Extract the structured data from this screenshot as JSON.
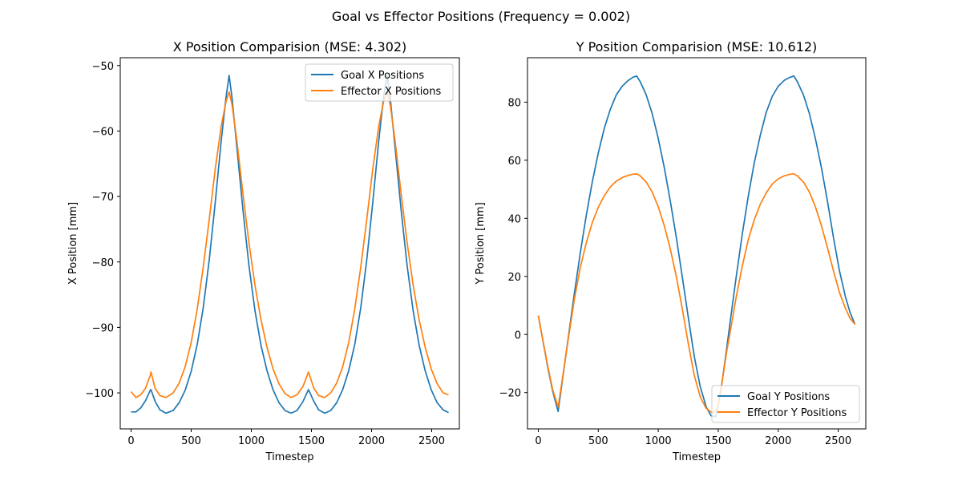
{
  "figure": {
    "suptitle": "Goal vs Effector Positions (Frequency = 0.002)"
  },
  "colors": {
    "goal": "#1f77b4",
    "effector": "#ff7f0e"
  },
  "chart_data": [
    {
      "type": "line",
      "title": "X Position Comparision (MSE: 4.302)",
      "xlabel": "Timestep",
      "ylabel": "X Position [mm]",
      "xlim": [
        -90,
        2730
      ],
      "ylim": [
        -105.5,
        -48.8
      ],
      "xticks": [
        0,
        500,
        1000,
        1500,
        2000,
        2500
      ],
      "yticks": [
        -100,
        -90,
        -80,
        -70,
        -60,
        -50
      ],
      "legend_position": "top-right",
      "series": [
        {
          "name": "Goal X Positions",
          "color": "#1f77b4",
          "points": [
            [
              0,
              -102.9
            ],
            [
              40,
              -102.9
            ],
            [
              80,
              -102.3
            ],
            [
              120,
              -101.2
            ],
            [
              160,
              -99.6
            ],
            [
              165,
              -99.5
            ],
            [
              200,
              -101.3
            ],
            [
              240,
              -102.6
            ],
            [
              290,
              -103.1
            ],
            [
              350,
              -102.7
            ],
            [
              400,
              -101.5
            ],
            [
              450,
              -99.6
            ],
            [
              500,
              -96.7
            ],
            [
              550,
              -92.6
            ],
            [
              600,
              -87.0
            ],
            [
              650,
              -79.7
            ],
            [
              700,
              -70.9
            ],
            [
              750,
              -61.4
            ],
            [
              790,
              -54.8
            ],
            [
              815,
              -51.5
            ],
            [
              840,
              -55.0
            ],
            [
              880,
              -62.5
            ],
            [
              930,
              -72.0
            ],
            [
              980,
              -80.5
            ],
            [
              1030,
              -87.4
            ],
            [
              1080,
              -92.7
            ],
            [
              1130,
              -96.6
            ],
            [
              1180,
              -99.5
            ],
            [
              1230,
              -101.5
            ],
            [
              1280,
              -102.7
            ],
            [
              1330,
              -103.1
            ],
            [
              1380,
              -102.7
            ],
            [
              1430,
              -101.3
            ],
            [
              1475,
              -99.5
            ],
            [
              1520,
              -101.3
            ],
            [
              1560,
              -102.6
            ],
            [
              1610,
              -103.1
            ],
            [
              1660,
              -102.7
            ],
            [
              1710,
              -101.5
            ],
            [
              1760,
              -99.5
            ],
            [
              1810,
              -96.6
            ],
            [
              1860,
              -92.6
            ],
            [
              1910,
              -87.0
            ],
            [
              1960,
              -79.7
            ],
            [
              2010,
              -70.9
            ],
            [
              2060,
              -61.4
            ],
            [
              2100,
              -54.8
            ],
            [
              2130,
              -51.5
            ],
            [
              2155,
              -55.0
            ],
            [
              2195,
              -62.5
            ],
            [
              2245,
              -72.0
            ],
            [
              2295,
              -80.5
            ],
            [
              2345,
              -87.4
            ],
            [
              2395,
              -92.7
            ],
            [
              2445,
              -96.6
            ],
            [
              2495,
              -99.5
            ],
            [
              2545,
              -101.5
            ],
            [
              2595,
              -102.6
            ],
            [
              2640,
              -103.0
            ]
          ]
        },
        {
          "name": "Effector X Positions",
          "color": "#ff7f0e",
          "points": [
            [
              0,
              -99.8
            ],
            [
              40,
              -100.7
            ],
            [
              80,
              -100.3
            ],
            [
              120,
              -99.3
            ],
            [
              160,
              -97.3
            ],
            [
              165,
              -96.8
            ],
            [
              200,
              -99.3
            ],
            [
              240,
              -100.4
            ],
            [
              290,
              -100.7
            ],
            [
              350,
              -100.0
            ],
            [
              400,
              -98.5
            ],
            [
              450,
              -96.0
            ],
            [
              500,
              -92.3
            ],
            [
              550,
              -87.2
            ],
            [
              600,
              -80.8
            ],
            [
              650,
              -73.5
            ],
            [
              700,
              -65.8
            ],
            [
              750,
              -59.2
            ],
            [
              790,
              -55.5
            ],
            [
              815,
              -54.0
            ],
            [
              840,
              -56.0
            ],
            [
              880,
              -61.5
            ],
            [
              930,
              -69.5
            ],
            [
              980,
              -77.0
            ],
            [
              1030,
              -83.5
            ],
            [
              1080,
              -88.8
            ],
            [
              1130,
              -93.0
            ],
            [
              1180,
              -96.3
            ],
            [
              1230,
              -98.6
            ],
            [
              1280,
              -100.1
            ],
            [
              1330,
              -100.7
            ],
            [
              1380,
              -100.3
            ],
            [
              1430,
              -99.0
            ],
            [
              1475,
              -96.8
            ],
            [
              1520,
              -99.3
            ],
            [
              1560,
              -100.4
            ],
            [
              1610,
              -100.7
            ],
            [
              1660,
              -100.0
            ],
            [
              1710,
              -98.5
            ],
            [
              1760,
              -96.0
            ],
            [
              1810,
              -92.3
            ],
            [
              1860,
              -87.2
            ],
            [
              1910,
              -80.8
            ],
            [
              1960,
              -73.5
            ],
            [
              2010,
              -65.8
            ],
            [
              2060,
              -59.2
            ],
            [
              2100,
              -55.5
            ],
            [
              2130,
              -54.0
            ],
            [
              2155,
              -56.0
            ],
            [
              2195,
              -61.5
            ],
            [
              2245,
              -69.5
            ],
            [
              2295,
              -77.0
            ],
            [
              2345,
              -83.5
            ],
            [
              2395,
              -88.8
            ],
            [
              2445,
              -93.0
            ],
            [
              2495,
              -96.3
            ],
            [
              2545,
              -98.6
            ],
            [
              2595,
              -100.0
            ],
            [
              2640,
              -100.3
            ]
          ]
        }
      ]
    },
    {
      "type": "line",
      "title": "Y Position Comparision (MSE: 10.612)",
      "xlabel": "Timestep",
      "ylabel": "Y Position [mm]",
      "xlim": [
        -90,
        2730
      ],
      "ylim": [
        -32.5,
        95.3
      ],
      "xticks": [
        0,
        500,
        1000,
        1500,
        2000,
        2500
      ],
      "yticks": [
        -20,
        0,
        20,
        40,
        60,
        80
      ],
      "legend_position": "bottom-right",
      "series": [
        {
          "name": "Goal Y Positions",
          "color": "#1f77b4",
          "points": [
            [
              0,
              6.5
            ],
            [
              40,
              -2.5
            ],
            [
              80,
              -11.5
            ],
            [
              120,
              -19.5
            ],
            [
              165,
              -26.5
            ],
            [
              200,
              -16.0
            ],
            [
              250,
              -1.0
            ],
            [
              300,
              14.0
            ],
            [
              350,
              28.0
            ],
            [
              400,
              41.0
            ],
            [
              450,
              52.5
            ],
            [
              500,
              62.5
            ],
            [
              550,
              71.0
            ],
            [
              600,
              77.5
            ],
            [
              650,
              82.5
            ],
            [
              700,
              85.5
            ],
            [
              750,
              87.5
            ],
            [
              790,
              88.6
            ],
            [
              820,
              89.0
            ],
            [
              850,
              87.0
            ],
            [
              900,
              82.5
            ],
            [
              950,
              76.0
            ],
            [
              1000,
              67.5
            ],
            [
              1050,
              57.5
            ],
            [
              1100,
              46.0
            ],
            [
              1150,
              33.5
            ],
            [
              1200,
              20.0
            ],
            [
              1250,
              6.0
            ],
            [
              1300,
              -7.5
            ],
            [
              1350,
              -18.0
            ],
            [
              1400,
              -25.0
            ],
            [
              1440,
              -28.0
            ],
            [
              1480,
              -28.3
            ],
            [
              1520,
              -20.0
            ],
            [
              1560,
              -8.0
            ],
            [
              1600,
              4.5
            ],
            [
              1650,
              20.0
            ],
            [
              1700,
              34.5
            ],
            [
              1750,
              47.5
            ],
            [
              1800,
              59.0
            ],
            [
              1850,
              68.5
            ],
            [
              1900,
              76.5
            ],
            [
              1950,
              82.0
            ],
            [
              2000,
              85.5
            ],
            [
              2050,
              87.5
            ],
            [
              2100,
              88.6
            ],
            [
              2130,
              89.0
            ],
            [
              2160,
              87.0
            ],
            [
              2210,
              82.5
            ],
            [
              2260,
              76.0
            ],
            [
              2310,
              67.5
            ],
            [
              2360,
              57.5
            ],
            [
              2410,
              46.0
            ],
            [
              2460,
              33.5
            ],
            [
              2510,
              22.0
            ],
            [
              2560,
              13.0
            ],
            [
              2600,
              7.5
            ],
            [
              2640,
              3.5
            ]
          ]
        },
        {
          "name": "Effector Y Positions",
          "color": "#ff7f0e",
          "points": [
            [
              0,
              6.5
            ],
            [
              40,
              -2.5
            ],
            [
              80,
              -11.0
            ],
            [
              120,
              -19.0
            ],
            [
              165,
              -25.0
            ],
            [
              200,
              -15.5
            ],
            [
              250,
              -1.5
            ],
            [
              300,
              12.0
            ],
            [
              350,
              23.0
            ],
            [
              400,
              31.5
            ],
            [
              450,
              38.5
            ],
            [
              500,
              43.8
            ],
            [
              550,
              47.8
            ],
            [
              600,
              50.8
            ],
            [
              650,
              52.8
            ],
            [
              700,
              54.0
            ],
            [
              750,
              54.8
            ],
            [
              790,
              55.2
            ],
            [
              820,
              55.3
            ],
            [
              850,
              54.6
            ],
            [
              900,
              52.5
            ],
            [
              950,
              49.0
            ],
            [
              1000,
              44.0
            ],
            [
              1050,
              37.5
            ],
            [
              1100,
              29.5
            ],
            [
              1150,
              20.0
            ],
            [
              1200,
              9.0
            ],
            [
              1250,
              -3.0
            ],
            [
              1300,
              -14.0
            ],
            [
              1350,
              -21.5
            ],
            [
              1400,
              -25.5
            ],
            [
              1450,
              -27.0
            ],
            [
              1490,
              -26.0
            ],
            [
              1530,
              -17.0
            ],
            [
              1570,
              -6.0
            ],
            [
              1600,
              1.0
            ],
            [
              1650,
              13.0
            ],
            [
              1700,
              23.5
            ],
            [
              1750,
              32.5
            ],
            [
              1800,
              39.5
            ],
            [
              1850,
              44.8
            ],
            [
              1900,
              48.8
            ],
            [
              1950,
              51.8
            ],
            [
              2000,
              53.6
            ],
            [
              2050,
              54.6
            ],
            [
              2100,
              55.2
            ],
            [
              2130,
              55.3
            ],
            [
              2160,
              54.6
            ],
            [
              2210,
              52.5
            ],
            [
              2260,
              49.0
            ],
            [
              2310,
              44.0
            ],
            [
              2360,
              37.5
            ],
            [
              2410,
              30.0
            ],
            [
              2460,
              22.0
            ],
            [
              2510,
              14.5
            ],
            [
              2560,
              9.0
            ],
            [
              2600,
              5.5
            ],
            [
              2640,
              3.5
            ]
          ]
        }
      ]
    }
  ]
}
